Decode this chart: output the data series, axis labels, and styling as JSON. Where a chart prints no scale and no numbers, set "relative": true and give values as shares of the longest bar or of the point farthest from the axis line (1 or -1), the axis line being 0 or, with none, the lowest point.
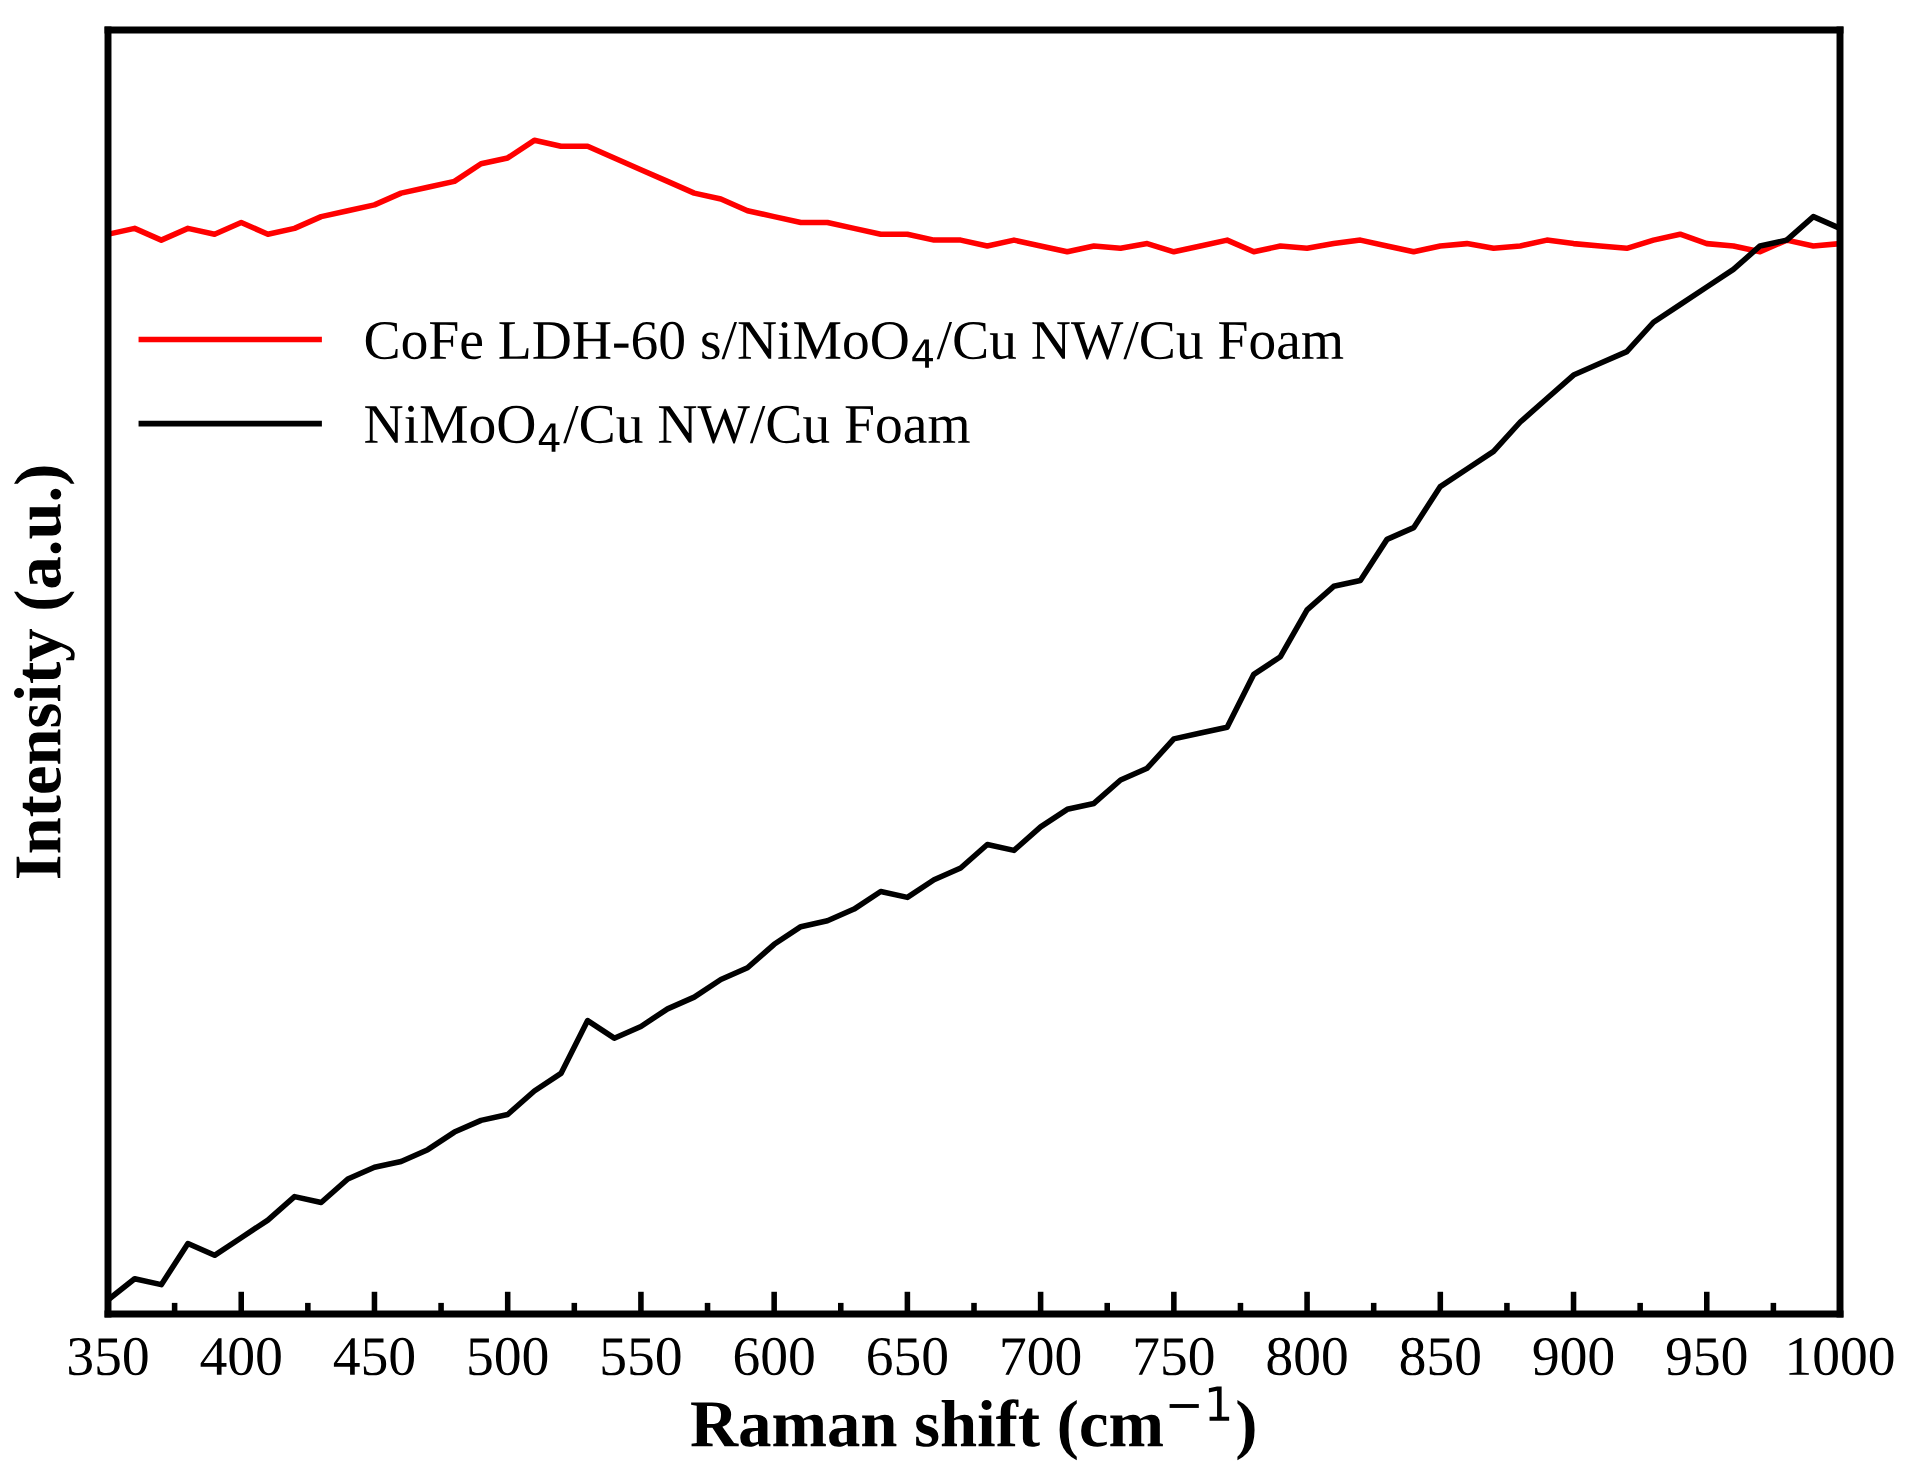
{
  "chart_data": {
    "type": "line",
    "xlabel": "Raman shift (cm$^{−1}$)",
    "ylabel": "Intensity (a.u.)",
    "relative": true,
    "x": [
      350,
      360,
      370,
      380,
      390,
      400,
      410,
      420,
      430,
      440,
      450,
      460,
      470,
      480,
      490,
      500,
      510,
      520,
      530,
      540,
      550,
      560,
      570,
      580,
      590,
      600,
      610,
      620,
      630,
      640,
      650,
      660,
      670,
      680,
      690,
      700,
      710,
      720,
      730,
      740,
      750,
      760,
      770,
      780,
      790,
      800,
      810,
      820,
      830,
      840,
      850,
      860,
      870,
      880,
      890,
      900,
      910,
      920,
      930,
      940,
      950,
      960,
      970,
      980,
      990,
      1000
    ],
    "xlim": [
      350,
      1000
    ],
    "xticks": [
      350,
      400,
      450,
      500,
      550,
      600,
      650,
      700,
      750,
      800,
      850,
      900,
      950,
      1000
    ],
    "series": [
      {
        "name": "CoFe LDH-60 s/NiMoO$_{4}$/Cu NW/Cu Foam",
        "color": "#ff0000",
        "values": [
          0.92,
          0.925,
          0.915,
          0.925,
          0.92,
          0.93,
          0.92,
          0.925,
          0.935,
          0.94,
          0.945,
          0.955,
          0.96,
          0.965,
          0.98,
          0.985,
          1.0,
          0.995,
          0.995,
          0.985,
          0.975,
          0.965,
          0.955,
          0.95,
          0.94,
          0.935,
          0.93,
          0.93,
          0.925,
          0.92,
          0.92,
          0.915,
          0.915,
          0.91,
          0.915,
          0.91,
          0.905,
          0.91,
          0.908,
          0.912,
          0.905,
          0.91,
          0.915,
          0.905,
          0.91,
          0.908,
          0.912,
          0.915,
          0.91,
          0.905,
          0.91,
          0.912,
          0.908,
          0.91,
          0.915,
          0.912,
          0.91,
          0.908,
          0.915,
          0.92,
          0.912,
          0.91,
          0.905,
          0.915,
          0.91,
          0.912
        ]
      },
      {
        "name": "NiMoO$_{4}$/Cu NW/Cu Foam",
        "color": "#000000",
        "values": [
          0.012,
          0.03,
          0.025,
          0.06,
          0.05,
          0.065,
          0.08,
          0.1,
          0.095,
          0.115,
          0.125,
          0.13,
          0.14,
          0.155,
          0.165,
          0.17,
          0.19,
          0.205,
          0.25,
          0.235,
          0.245,
          0.26,
          0.27,
          0.285,
          0.295,
          0.315,
          0.33,
          0.335,
          0.345,
          0.36,
          0.355,
          0.37,
          0.38,
          0.4,
          0.395,
          0.415,
          0.43,
          0.435,
          0.455,
          0.465,
          0.49,
          0.495,
          0.5,
          0.545,
          0.56,
          0.6,
          0.62,
          0.625,
          0.66,
          0.67,
          0.705,
          0.72,
          0.735,
          0.76,
          0.78,
          0.8,
          0.81,
          0.82,
          0.845,
          0.86,
          0.875,
          0.89,
          0.91,
          0.915,
          0.935,
          0.925
        ]
      }
    ],
    "legend": "top left",
    "grid": false,
    "marker": "none",
    "line_style": "solid"
  }
}
